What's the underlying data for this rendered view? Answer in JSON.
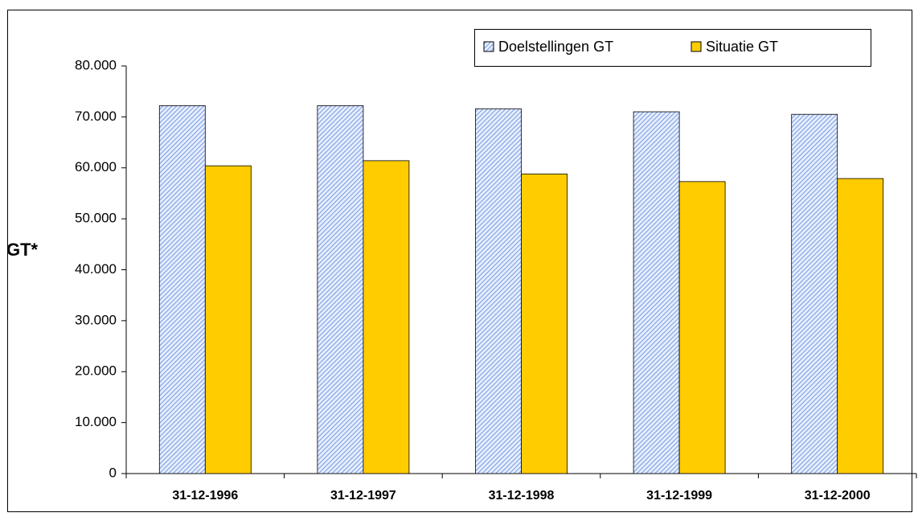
{
  "chart_data": {
    "type": "bar",
    "y_label": "GT*",
    "categories": [
      "31-12-1996",
      "31-12-1997",
      "31-12-1998",
      "31-12-1999",
      "31-12-2000"
    ],
    "series": [
      {
        "name": "Doelstellingen GT",
        "color": "#7f9fdf",
        "hatch": true,
        "values": [
          72200,
          72200,
          71600,
          71000,
          70500
        ]
      },
      {
        "name": "Situatie GT",
        "color": "#ffcc00",
        "hatch": false,
        "values": [
          60400,
          61400,
          58800,
          57300,
          57900
        ]
      }
    ],
    "ylim": [
      0,
      80000
    ],
    "yticks": [
      0,
      {
        "value": 10000,
        "label": "10.000"
      },
      {
        "value": 20000,
        "label": "20.000"
      },
      {
        "value": 30000,
        "label": "30.000"
      },
      {
        "value": 40000,
        "label": "40.000"
      },
      {
        "value": 50000,
        "label": "50.000"
      },
      {
        "value": 60000,
        "label": "60.000"
      },
      {
        "value": 70000,
        "label": "70.000"
      },
      {
        "value": 80000,
        "label": "80.000"
      }
    ],
    "grid": false,
    "legend": "top-right"
  }
}
